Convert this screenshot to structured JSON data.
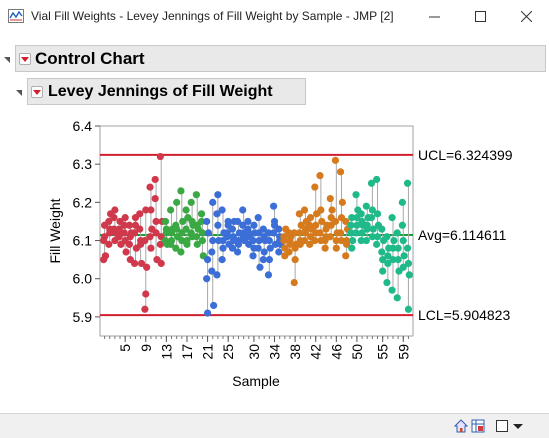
{
  "window": {
    "title": "Vial Fill Weights - Levey Jennings of Fill Weight by Sample - JMP [2]",
    "app_icon": "jmp-chart-icon",
    "controls": {
      "minimize": "─",
      "maximize": "☐",
      "close": "✕"
    }
  },
  "outline": {
    "control_chart_title": "Control Chart",
    "lj_title": "Levey Jennings of Fill Weight"
  },
  "chart_data": {
    "type": "line",
    "title": "",
    "xlabel": "Sample",
    "ylabel": "Fill Weight",
    "ylim": [
      5.85,
      6.4
    ],
    "y_ticks": [
      "5.9",
      "6.0",
      "6.1",
      "6.2",
      "6.3",
      "6.4"
    ],
    "x_ticks": [
      "5",
      "9",
      "13",
      "17",
      "21",
      "25",
      "30",
      "34",
      "38",
      "42",
      "46",
      "50",
      "55",
      "59"
    ],
    "limits": {
      "ucl": 6.324399,
      "ucl_label": "UCL=6.324399",
      "avg": 6.114611,
      "avg_label": "Avg=6.114611",
      "lcl": 5.904823,
      "lcl_label": "LCL=5.904823"
    },
    "colors": {
      "limit_line": "#d0202e",
      "center_line": "#1a9e3a",
      "connector": "#a8a8a8",
      "groups": [
        "#d0384c",
        "#3aa843",
        "#3b6ed6",
        "#d67a1e",
        "#1fb98a"
      ]
    },
    "n_samples": 60,
    "groups": [
      {
        "samples": [
          1,
          12
        ],
        "values": [
          [
            6.05,
            6.11,
            6.06,
            6.1,
            6.14
          ],
          [
            6.15,
            6.12,
            6.17,
            6.09,
            6.13
          ],
          [
            6.16,
            6.1,
            6.12,
            6.13,
            6.18
          ],
          [
            6.11,
            6.15,
            6.09,
            6.13,
            6.12
          ],
          [
            6.14,
            6.16,
            6.07,
            6.12,
            6.1
          ],
          [
            6.09,
            6.05,
            6.12,
            6.14,
            6.11
          ],
          [
            6.04,
            6.14,
            6.08,
            6.12,
            6.16
          ],
          [
            6.13,
            6.1,
            6.04,
            6.17,
            6.09
          ],
          [
            5.92,
            5.96,
            6.03,
            6.1,
            6.18
          ],
          [
            6.24,
            6.18,
            6.13,
            6.11,
            6.08
          ],
          [
            6.26,
            6.15,
            6.05,
            6.21,
            6.12
          ],
          [
            6.32,
            6.04,
            6.15,
            6.09,
            6.11
          ]
        ]
      },
      {
        "samples": [
          13,
          20
        ],
        "values": [
          [
            6.15,
            6.12,
            6.09,
            6.1,
            6.13
          ],
          [
            6.18,
            6.1,
            6.13,
            6.09,
            6.12
          ],
          [
            6.14,
            6.2,
            6.11,
            6.08,
            6.13
          ],
          [
            6.23,
            6.1,
            6.15,
            6.07,
            6.12
          ],
          [
            6.18,
            6.09,
            6.16,
            6.13,
            6.1
          ],
          [
            6.2,
            6.11,
            6.14,
            6.12,
            6.15
          ],
          [
            6.22,
            6.09,
            6.13,
            6.11,
            6.14
          ],
          [
            6.17,
            6.12,
            6.06,
            6.15,
            6.1
          ]
        ]
      },
      {
        "samples": [
          21,
          35
        ],
        "values": [
          [
            6.0,
            6.05,
            6.12,
            6.15,
            5.91
          ],
          [
            6.07,
            6.2,
            5.93,
            6.02,
            6.1
          ],
          [
            6.17,
            6.22,
            6.1,
            6.01,
            6.14
          ],
          [
            6.05,
            6.08,
            6.12,
            6.18,
            6.1
          ],
          [
            6.11,
            6.15,
            6.09,
            6.12,
            6.14
          ],
          [
            6.08,
            6.11,
            6.15,
            6.13,
            6.1
          ],
          [
            6.07,
            6.1,
            6.12,
            6.15,
            6.09
          ],
          [
            6.14,
            6.12,
            6.1,
            6.18,
            6.11
          ],
          [
            6.13,
            6.09,
            6.11,
            6.15,
            6.12
          ],
          [
            6.06,
            6.08,
            6.12,
            6.1,
            6.14
          ],
          [
            6.16,
            6.1,
            6.03,
            6.08,
            6.12
          ],
          [
            6.13,
            6.07,
            6.1,
            6.05,
            6.11
          ],
          [
            6.01,
            6.05,
            6.08,
            6.12,
            6.1
          ],
          [
            6.19,
            6.14,
            6.09,
            6.12,
            6.15
          ],
          [
            6.07,
            6.11,
            6.09,
            6.13,
            6.1
          ]
        ]
      },
      {
        "samples": [
          36,
          48
        ],
        "values": [
          [
            6.1,
            6.08,
            6.13,
            6.11,
            6.06
          ],
          [
            6.12,
            6.09,
            6.11,
            6.07,
            6.1
          ],
          [
            5.99,
            6.05,
            6.09,
            6.12,
            6.08
          ],
          [
            6.17,
            6.1,
            6.14,
            6.12,
            6.09
          ],
          [
            6.18,
            6.12,
            6.15,
            6.1,
            6.13
          ],
          [
            6.14,
            6.11,
            6.13,
            6.09,
            6.16
          ],
          [
            6.24,
            6.12,
            6.17,
            6.1,
            6.14
          ],
          [
            6.27,
            6.1,
            6.15,
            6.12,
            6.18
          ],
          [
            6.08,
            6.11,
            6.14,
            6.1,
            6.13
          ],
          [
            6.21,
            6.14,
            6.18,
            6.11,
            6.16
          ],
          [
            6.31,
            6.08,
            6.12,
            6.15,
            6.1
          ],
          [
            6.28,
            6.16,
            6.2,
            6.12,
            6.1
          ],
          [
            6.06,
            6.1,
            6.13,
            6.15,
            6.09
          ]
        ]
      },
      {
        "samples": [
          49,
          60
        ],
        "values": [
          [
            6.12,
            6.16,
            6.1,
            6.14,
            6.08
          ],
          [
            6.22,
            6.14,
            6.18,
            6.12,
            6.16
          ],
          [
            6.17,
            6.12,
            6.14,
            6.1,
            6.15
          ],
          [
            6.19,
            6.13,
            6.16,
            6.1,
            6.14
          ],
          [
            6.25,
            6.18,
            6.13,
            6.16,
            6.11
          ],
          [
            6.26,
            6.11,
            6.14,
            6.09,
            6.17
          ],
          [
            6.07,
            6.02,
            6.1,
            6.13,
            6.05
          ],
          [
            5.99,
            6.04,
            6.08,
            6.11,
            6.06
          ],
          [
            6.16,
            6.05,
            6.1,
            5.97,
            6.08
          ],
          [
            5.95,
            6.08,
            6.02,
            6.12,
            6.05
          ],
          [
            6.2,
            6.1,
            6.06,
            6.14,
            6.03
          ],
          [
            6.25,
            5.92,
            6.01,
            6.08,
            6.04
          ]
        ]
      }
    ]
  },
  "statusbar": {
    "home_icon": "home-icon",
    "table_icon": "data-table-icon",
    "checkbox_icon": "checkbox-icon",
    "dropdown_icon": "dropdown-arrow-icon"
  }
}
